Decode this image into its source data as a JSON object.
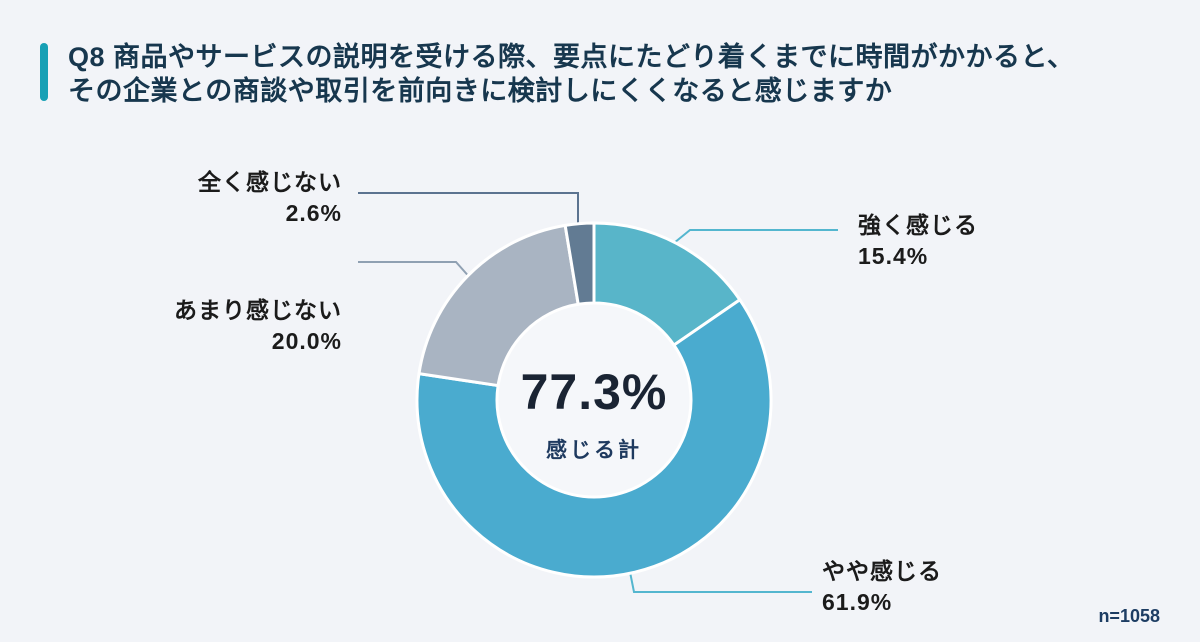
{
  "header": {
    "accent_color": "#17a0b5",
    "title_line1": "Q8 商品やサービスの説明を受ける際、要点にたどり着くまでに時間がかかると、",
    "title_line2": "その企業との商談や取引を前向きに検討しにくくなると感じますか"
  },
  "chart_data": {
    "type": "pie",
    "subtype": "donut",
    "title": "Q8 商品やサービスの説明を受ける際、要点にたどり着くまでに時間がかかると、その企業との商談や取引を前向きに検討しにくくなると感じますか",
    "start_position": "top, clockwise",
    "legend_position": "none (leader-line callouts)",
    "sample_size_label": "n=1058",
    "center_total": "77.3%",
    "center_caption": "感じる計",
    "hole_color": "#f5f7fa",
    "separator_color": "#ffffff",
    "segments": [
      {
        "label": "強く感じる",
        "value": 15.4,
        "pct_label": "15.4%",
        "color": "#58b5c9",
        "line_color": "#54b6cf"
      },
      {
        "label": "やや感じる",
        "value": 61.9,
        "pct_label": "61.9%",
        "color": "#4aabcf",
        "line_color": "#54b6cf"
      },
      {
        "label": "あまり感じない",
        "value": 20.0,
        "pct_label": "20.0%",
        "color": "#a9b4c2",
        "line_color": "#8fa0b2"
      },
      {
        "label": "全く感じない",
        "value": 2.6,
        "pct_label": "2.6%",
        "color": "#627b93",
        "line_color": "#5b7390"
      }
    ]
  }
}
